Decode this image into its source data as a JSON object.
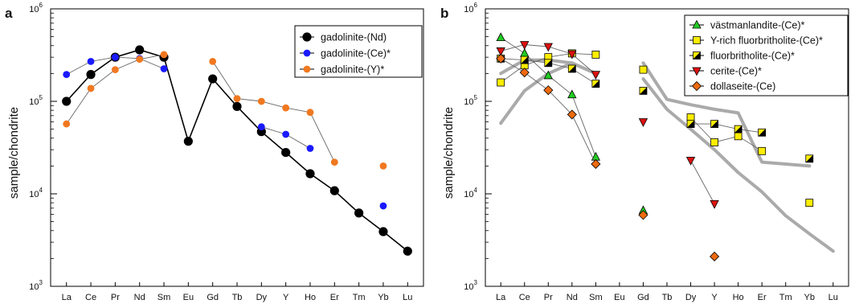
{
  "chart_data": [
    {
      "panel": "a",
      "type": "line",
      "ylabel": "sample/chondrite",
      "yscale": "log",
      "ylim": [
        1000,
        1000000
      ],
      "yticks": [
        {
          "value": 1000,
          "base": "10",
          "exp": "3"
        },
        {
          "value": 10000,
          "base": "10",
          "exp": "4"
        },
        {
          "value": 100000,
          "base": "10",
          "exp": "5"
        },
        {
          "value": 1000000,
          "base": "10",
          "exp": "6"
        }
      ],
      "categories": [
        "La",
        "Ce",
        "Pr",
        "Nd",
        "Sm",
        "Eu",
        "Gd",
        "Tb",
        "Dy",
        "Y",
        "Ho",
        "Er",
        "Tm",
        "Yb",
        "Lu"
      ],
      "legend_position": "top-right",
      "series": [
        {
          "name": "gadolinite-(Nd)",
          "color": "#000000",
          "marker": "circle-large",
          "values": [
            100000,
            195000,
            300000,
            360000,
            300000,
            37000,
            175000,
            88000,
            47000,
            28000,
            16500,
            10800,
            6200,
            3900,
            2400
          ]
        },
        {
          "name": "gadolinite-(Ce)*",
          "color": "#1a1aff",
          "marker": "circle",
          "values": [
            195000,
            270000,
            300000,
            290000,
            225000,
            null,
            null,
            null,
            53000,
            44000,
            31000,
            null,
            null,
            7400,
            null
          ]
        },
        {
          "name": "gadolinite-(Y)*",
          "color": "#f07820",
          "marker": "circle",
          "values": [
            57000,
            138000,
            220000,
            285000,
            320000,
            null,
            270000,
            107000,
            100000,
            85000,
            76000,
            22000,
            null,
            20000,
            null
          ]
        }
      ]
    },
    {
      "panel": "b",
      "type": "line",
      "ylabel": "sample/chondrite",
      "yscale": "log",
      "ylim": [
        1000,
        1000000
      ],
      "yticks": [
        {
          "value": 1000,
          "base": "10",
          "exp": "3"
        },
        {
          "value": 10000,
          "base": "10",
          "exp": "4"
        },
        {
          "value": 100000,
          "base": "10",
          "exp": "5"
        },
        {
          "value": 1000000,
          "base": "10",
          "exp": "6"
        }
      ],
      "categories": [
        "La",
        "Ce",
        "Pr",
        "Nd",
        "Sm",
        "Eu",
        "Gd",
        "Tb",
        "Dy",
        "Y",
        "Ho",
        "Er",
        "Tm",
        "Yb",
        "Lu"
      ],
      "legend_position": "top-right",
      "series": [
        {
          "name": "västmanlandite-(Ce)*",
          "color": "#22cc22",
          "marker": "triangle-up",
          "values": [
            490000,
            330000,
            190000,
            118000,
            25000,
            null,
            6600,
            null,
            null,
            null,
            null,
            null,
            null,
            null,
            null
          ]
        },
        {
          "name": "Y-rich fluorbritholite-(Ce)*",
          "color": "#ffee00",
          "marker": "square",
          "values": [
            160000,
            245000,
            300000,
            330000,
            320000,
            null,
            220000,
            null,
            67000,
            36000,
            42000,
            29000,
            null,
            8000,
            null
          ]
        },
        {
          "name": "fluorbritholite-(Ce)*",
          "color": "#ffee00",
          "marker": "square-half-black",
          "values": [
            290000,
            280000,
            260000,
            225000,
            155000,
            null,
            130000,
            null,
            57000,
            57000,
            50000,
            46000,
            null,
            24000,
            null
          ]
        },
        {
          "name": "cerite-(Ce)*",
          "color": "#dd1111",
          "marker": "triangle-down",
          "values": [
            350000,
            410000,
            390000,
            325000,
            195000,
            null,
            60000,
            null,
            23000,
            7800,
            null,
            null,
            null,
            null,
            null
          ]
        },
        {
          "name": "dollaseite-(Ce)",
          "color": "#ee6a10",
          "marker": "diamond",
          "values": [
            290000,
            205000,
            132000,
            72000,
            21000,
            null,
            5900,
            null,
            null,
            2100,
            null,
            null,
            null,
            null,
            null
          ]
        }
      ],
      "reference_lines": [
        {
          "color": "#aaaaaa",
          "values": [
            200000,
            280000,
            280000,
            260000,
            200000,
            null,
            null,
            null,
            null,
            null,
            null,
            null,
            null,
            null,
            null
          ]
        },
        {
          "color": "#aaaaaa",
          "values": [
            58000,
            130000,
            200000,
            260000,
            200000,
            null,
            null,
            null,
            null,
            null,
            null,
            null,
            null,
            null,
            null
          ]
        },
        {
          "color": "#aaaaaa",
          "values": [
            null,
            null,
            null,
            null,
            null,
            null,
            260000,
            105000,
            92000,
            82000,
            75000,
            22000,
            null,
            20000,
            null
          ]
        },
        {
          "color": "#aaaaaa",
          "values": [
            null,
            null,
            null,
            null,
            null,
            null,
            175000,
            82000,
            50000,
            30000,
            17000,
            10500,
            5800,
            3700,
            2400
          ]
        }
      ]
    }
  ]
}
